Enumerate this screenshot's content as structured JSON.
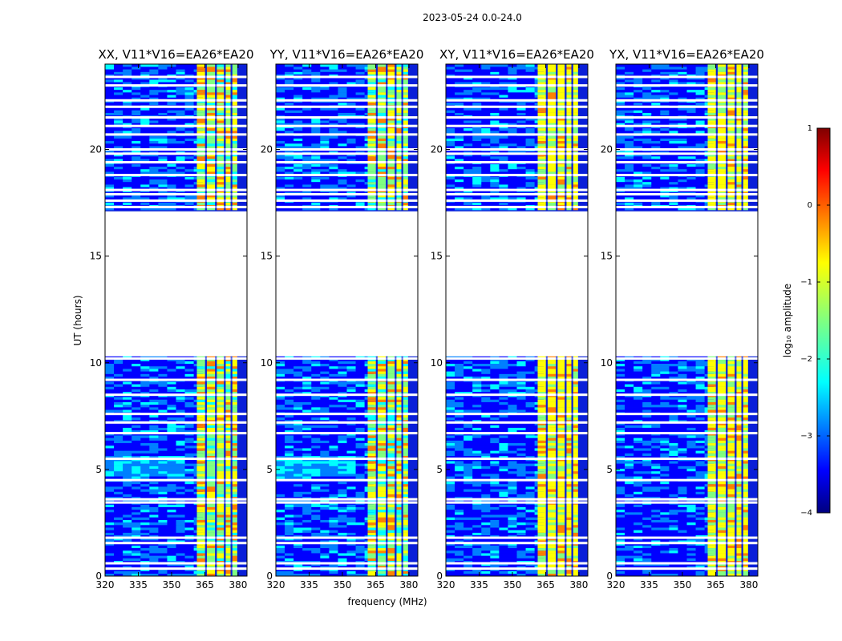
{
  "figure": {
    "suptitle": "2023-05-24 0.0-24.0",
    "xlabel": "frequency (MHz)",
    "ylabel": "UT (hours)"
  },
  "chart_data": {
    "type": "heatmap",
    "title": "2023-05-24 0.0-24.0",
    "xlabel": "frequency (MHz)",
    "ylabel": "UT (hours)",
    "xlim": [
      320,
      384
    ],
    "ylim": [
      0,
      24
    ],
    "xticks": [
      320,
      335,
      350,
      365,
      380
    ],
    "yticks": [
      0,
      5,
      10,
      15,
      20
    ],
    "panels": [
      {
        "title": "XX, V11*V16=EA26*EA20",
        "pol": "XX"
      },
      {
        "title": "YY, V11*V16=EA26*EA20",
        "pol": "YY"
      },
      {
        "title": "XY, V11*V16=EA26*EA20",
        "pol": "XY"
      },
      {
        "title": "YX, V11*V16=EA26*EA20",
        "pol": "YX"
      }
    ],
    "data_gaps_hours": [
      [
        10.3,
        17.1
      ]
    ],
    "strong_band_mhz": [
      361,
      380
    ],
    "colorbar": {
      "label": "log₁₀ amplitude",
      "range": [
        -4,
        1
      ],
      "ticks": [
        "1",
        "0",
        "−1",
        "−2",
        "−3",
        "−4"
      ],
      "colormap": "jet"
    }
  },
  "colors": {
    "jet": [
      "#00007f",
      "#0000ff",
      "#0080ff",
      "#00ffff",
      "#80ff80",
      "#ffff00",
      "#ff8000",
      "#ff0000",
      "#7f0000"
    ]
  }
}
